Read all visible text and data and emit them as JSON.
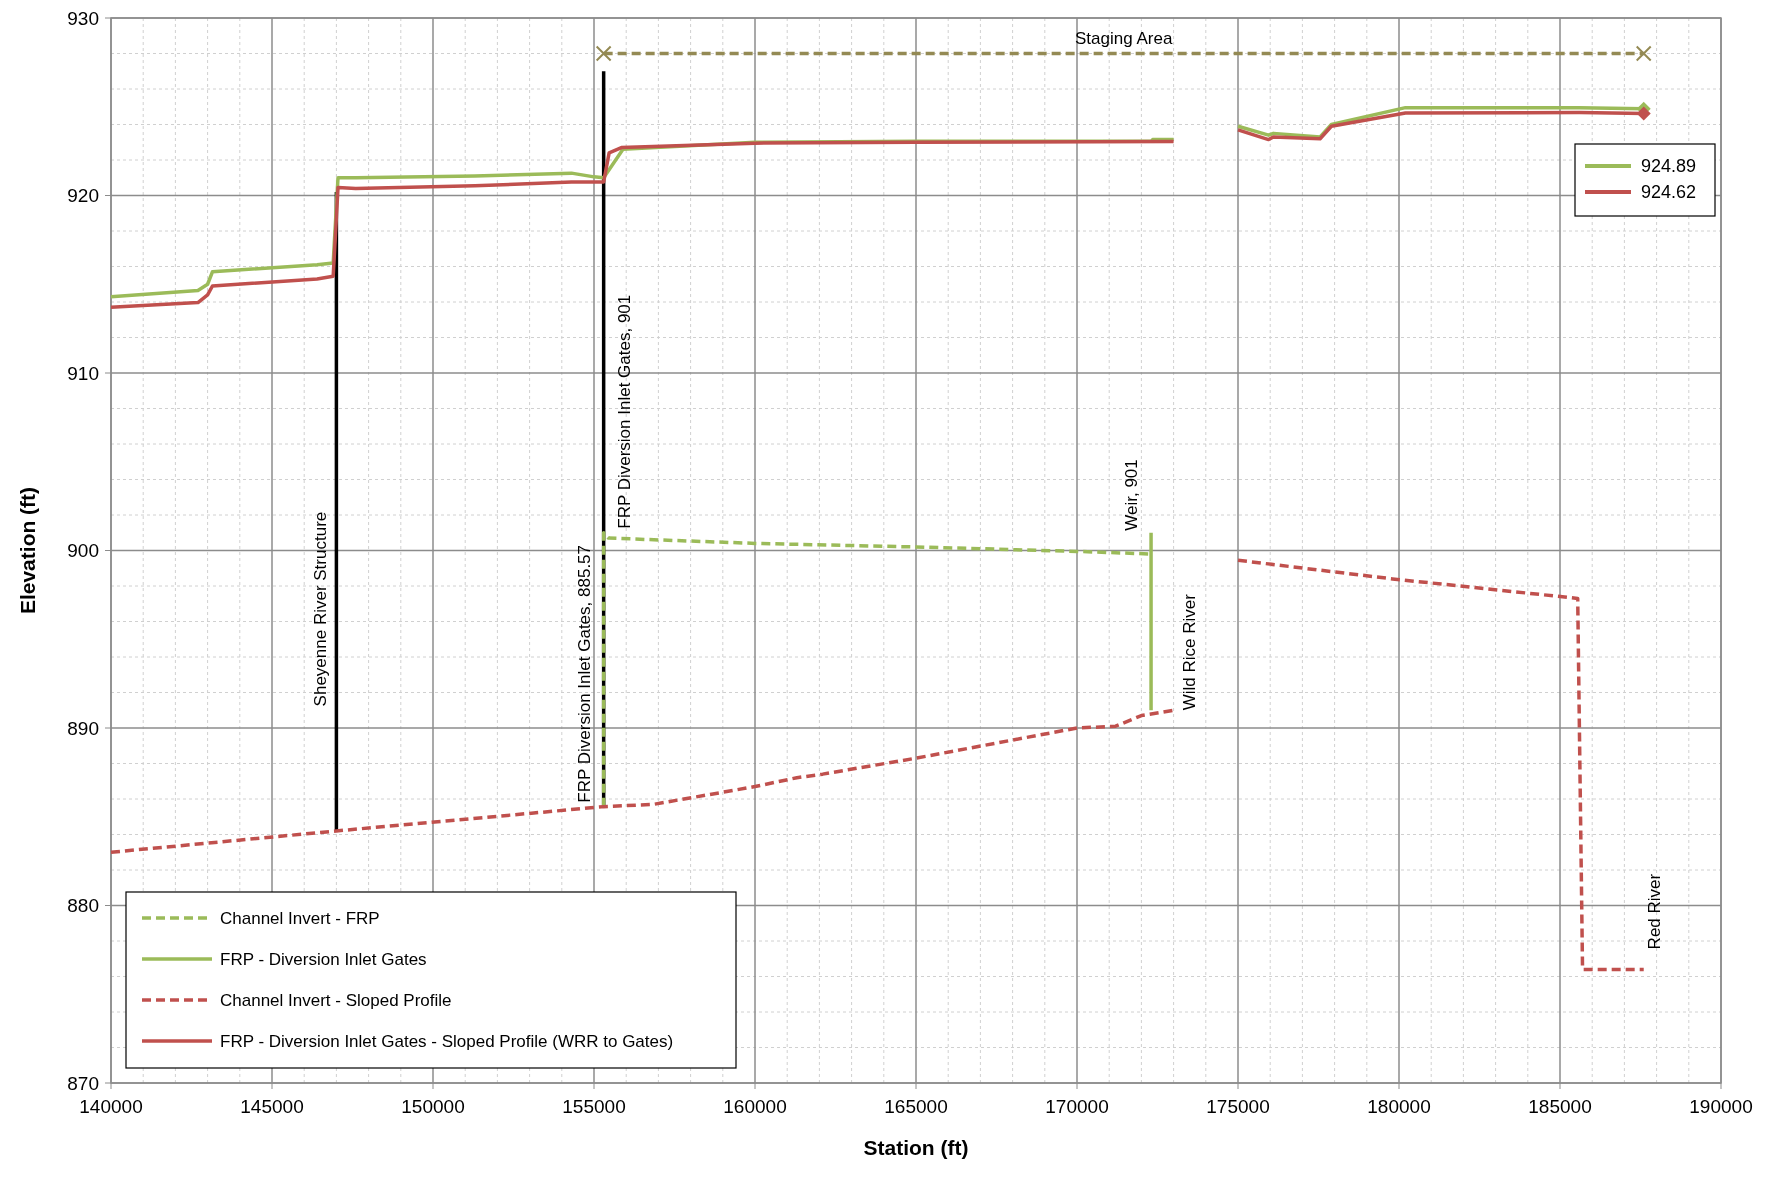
{
  "chart_data": {
    "type": "line",
    "xlabel": "Station (ft)",
    "ylabel": "Elevation (ft)",
    "xlim": [
      140000,
      190000
    ],
    "xticks": [
      140000,
      145000,
      150000,
      155000,
      160000,
      165000,
      170000,
      175000,
      180000,
      185000,
      190000
    ],
    "ylim": [
      870,
      930
    ],
    "yticks": [
      870,
      880,
      890,
      900,
      910,
      920,
      930
    ],
    "grid": true,
    "legend": "bottom left",
    "series": [
      {
        "color": "#000000",
        "line_style": "solid",
        "x": [
          147000,
          147000,
          147000
        ],
        "values": [
          884.2,
          896.7,
          920.2
        ]
      },
      {
        "color": "#000000",
        "line_style": "solid",
        "x": [
          155300,
          155300
        ],
        "values": [
          885.57,
          927
        ]
      },
      {
        "color": "#9bbb59",
        "line_style": "solid",
        "x": [
          172300,
          172300
        ],
        "values": [
          901,
          891
        ]
      },
      {
        "name": "Channel Invert - FRP",
        "color": "#9bbb59",
        "line_style": "dashed",
        "x": [
          155300,
          155300,
          155450,
          160000,
          165000,
          170000,
          172300
        ],
        "values": [
          885.57,
          901,
          900.7,
          900.4,
          900.2,
          899.95,
          899.8
        ]
      },
      {
        "name": "FRP - Diversion Inlet Gates",
        "color": "#9bbb59",
        "line_style": "solid",
        "x": [
          140000,
          142700,
          143000,
          143150,
          146400,
          146900,
          147050,
          147600,
          151300,
          154300,
          155000,
          155300,
          155900,
          160000,
          165000,
          172300,
          172350,
          173000,
          174000,
          175000,
          175950,
          176100,
          177550,
          177900,
          180200,
          185600,
          187600
        ],
        "values": [
          914.3,
          914.65,
          915.0,
          915.7,
          916.1,
          916.2,
          921.0,
          921.0,
          921.1,
          921.26,
          921.05,
          921.0,
          922.6,
          923.0,
          923.05,
          923.05,
          923.15,
          923.15,
          null,
          923.9,
          923.4,
          923.5,
          923.3,
          924.0,
          924.95,
          924.95,
          924.89
        ]
      },
      {
        "name": "Channel Invert - Sloped Profile",
        "color": "#c0504d",
        "line_style": "dashed",
        "x": [
          140000,
          147000,
          155300,
          156850,
          160000,
          161300,
          162100,
          165000,
          170000,
          171200,
          172000,
          173000,
          174000,
          175000,
          179800,
          185550,
          185700,
          187600
        ],
        "values": [
          883.0,
          884.2,
          885.57,
          885.7,
          886.7,
          887.2,
          887.4,
          888.3,
          890.0,
          890.1,
          890.7,
          891.0,
          null,
          899.45,
          898.4,
          897.3,
          876.4,
          876.4
        ]
      },
      {
        "name": "FRP - Diversion Inlet Gates - Sloped Profile (WRR to Gates)",
        "color": "#c0504d",
        "line_style": "solid",
        "x": [
          140000,
          142700,
          143000,
          143150,
          146400,
          146900,
          147050,
          147600,
          151300,
          154300,
          155300,
          155470,
          155850,
          160000,
          165000,
          173000,
          174000,
          175000,
          175950,
          176100,
          177550,
          177900,
          180200,
          185600,
          187600
        ],
        "values": [
          913.7,
          913.97,
          914.4,
          914.9,
          915.3,
          915.45,
          920.45,
          920.4,
          920.55,
          920.76,
          920.76,
          922.4,
          922.7,
          922.95,
          923.0,
          923.04,
          null,
          923.7,
          923.15,
          923.3,
          923.2,
          923.9,
          924.65,
          924.67,
          924.62
        ]
      },
      {
        "name": "Staging Area",
        "color": "#948a54",
        "line_style": "dashed",
        "marker": "cross",
        "x": [
          155300,
          187600
        ],
        "values": [
          928,
          928
        ]
      },
      {
        "name": "924.89",
        "type": "scatter",
        "color": "#9bbb59",
        "marker": "diamond",
        "x": [
          187600
        ],
        "values": [
          924.89
        ]
      },
      {
        "name": "924.62",
        "type": "scatter",
        "color": "#c0504d",
        "marker": "diamond",
        "x": [
          187600
        ],
        "values": [
          924.62
        ]
      }
    ],
    "annotations": [
      {
        "text": "Sheyenne River Structure",
        "x": 147000,
        "y": 896.7
      },
      {
        "text": "FRP Diversion Inlet Gates, 885.57",
        "x": 155300,
        "y": 885.57
      },
      {
        "text": "FRP Diversion Inlet Gates, 901",
        "x": 155300,
        "y": 901
      },
      {
        "text": "Weir, 901",
        "x": 172300,
        "y": 901
      },
      {
        "text": "Wild Rice River",
        "x": 172300,
        "y": 891
      },
      {
        "text": "Red River",
        "x": 187600,
        "y": 876.4
      }
    ]
  }
}
